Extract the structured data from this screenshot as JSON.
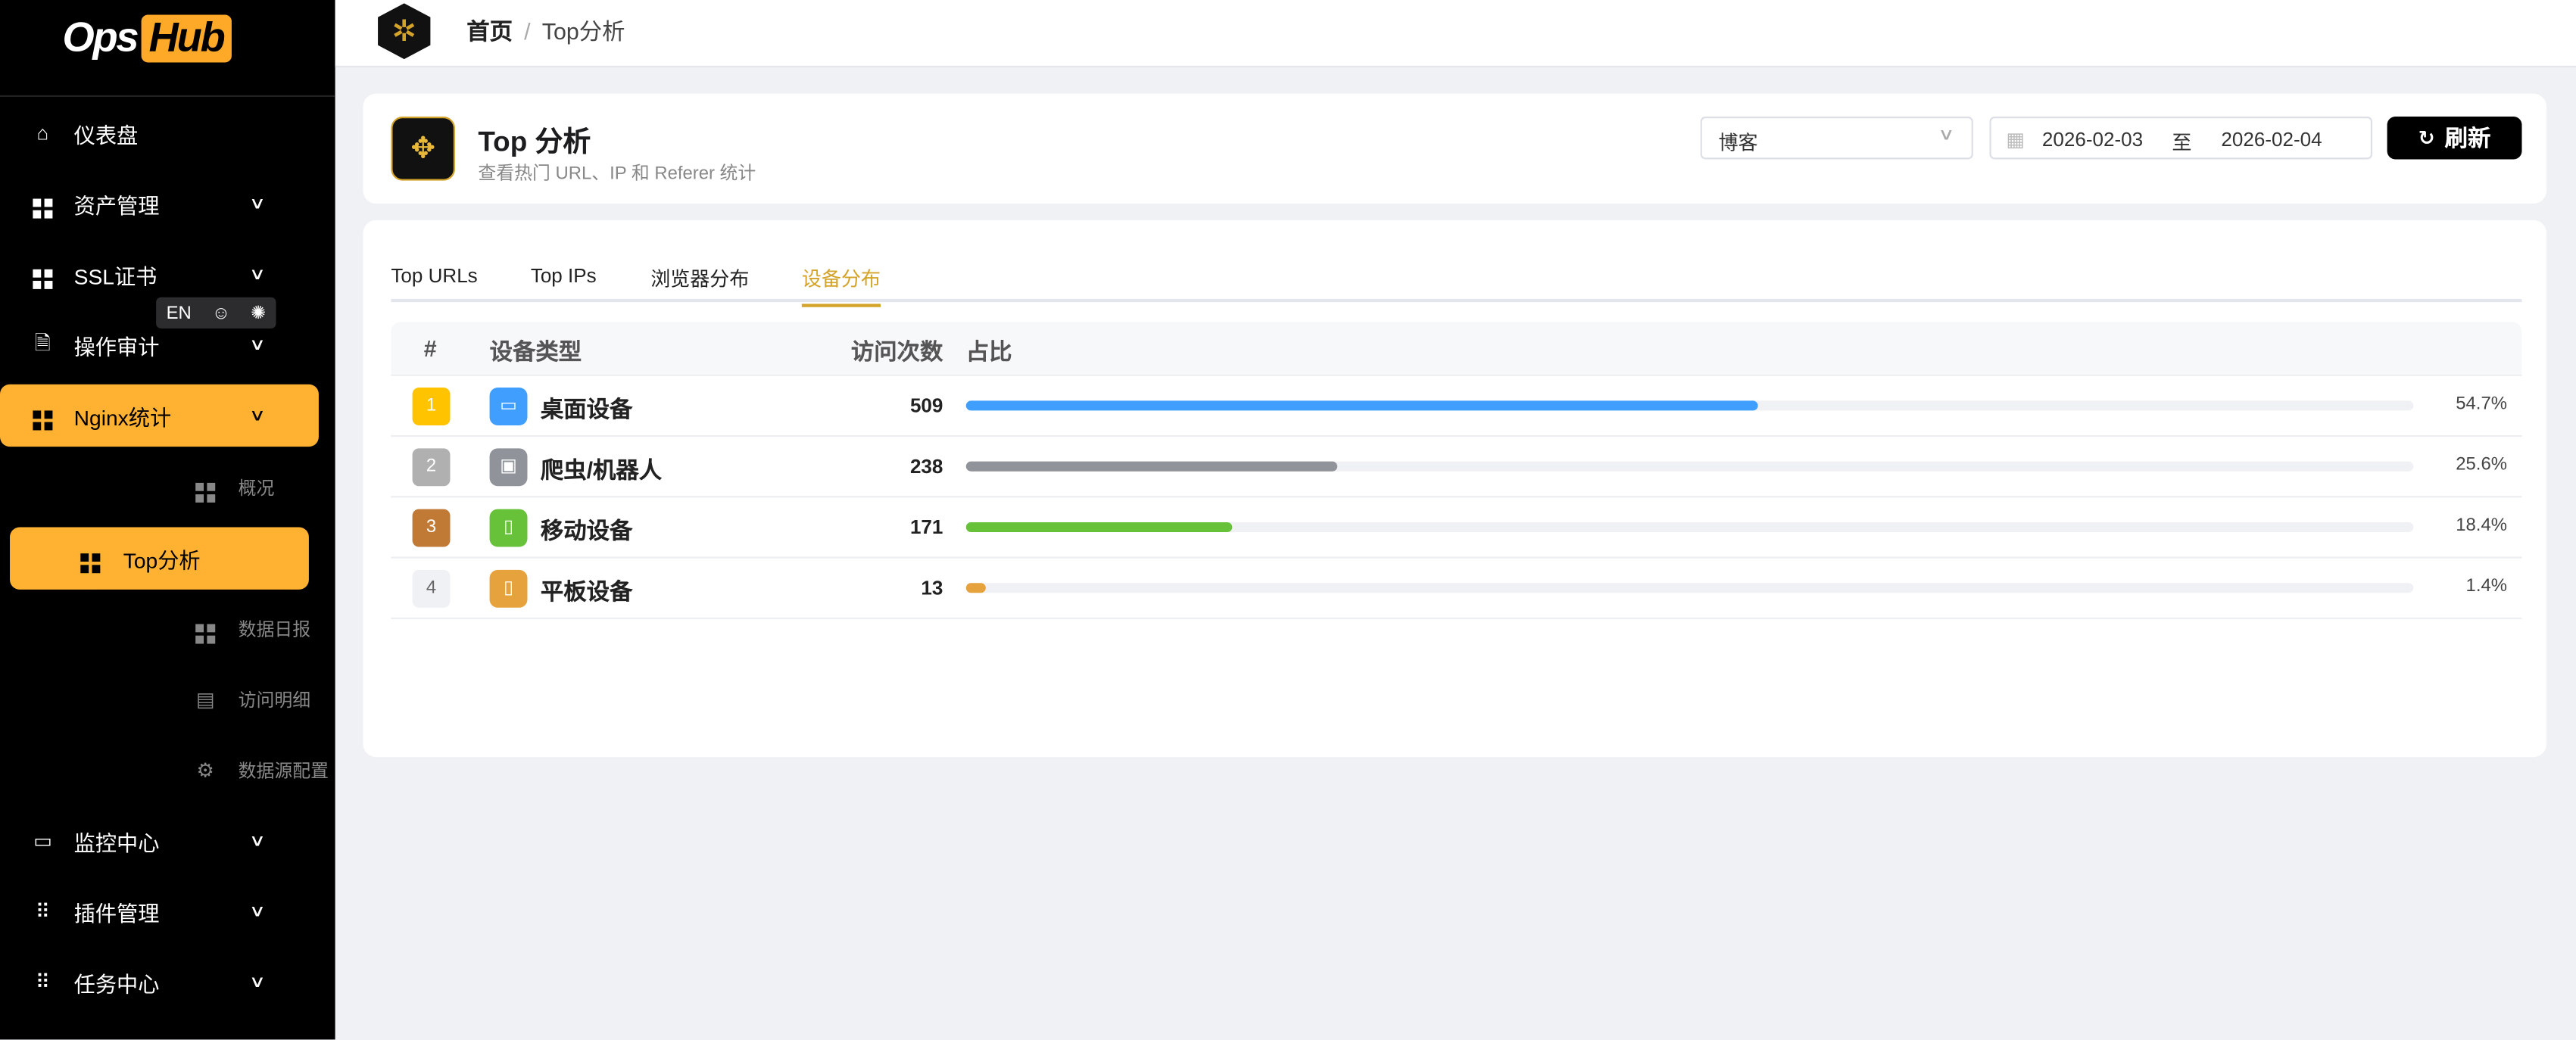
{
  "sidebar": {
    "logo": {
      "ops": "Ops",
      "hub": "Hub"
    },
    "items": [
      {
        "label": "仪表盘",
        "icon": "home-icon"
      },
      {
        "label": "资产管理",
        "icon": "grid-icon"
      },
      {
        "label": "SSL证书",
        "icon": "grid-icon"
      },
      {
        "label": "操作审计",
        "icon": "document-icon"
      },
      {
        "label": "Nginx统计",
        "icon": "grid-icon"
      },
      {
        "label": "概况",
        "icon": "grid-icon"
      },
      {
        "label": "Top分析",
        "icon": "grid-icon"
      },
      {
        "label": "数据日报",
        "icon": "grid-icon"
      },
      {
        "label": "访问明细",
        "icon": "clipboard-icon"
      },
      {
        "label": "数据源配置",
        "icon": "gear-icon"
      },
      {
        "label": "监控中心",
        "icon": "monitor-icon"
      },
      {
        "label": "插件管理",
        "icon": "apps-icon"
      },
      {
        "label": "任务中心",
        "icon": "apps-icon"
      }
    ],
    "lang": "EN"
  },
  "header": {
    "breadcrumb": [
      "首页",
      "Top分析"
    ]
  },
  "page": {
    "title": "Top 分析",
    "subtitle": "查看热门 URL、IP 和 Referer 统计",
    "site_select": "博客",
    "date_start": "2026-02-03",
    "date_sep": "至",
    "date_end": "2026-02-04",
    "refresh": "刷新"
  },
  "tabs": [
    {
      "label": "Top URLs"
    },
    {
      "label": "Top IPs"
    },
    {
      "label": "浏览器分布"
    },
    {
      "label": "设备分布",
      "active": true
    }
  ],
  "table": {
    "columns": [
      "#",
      "设备类型",
      "访问次数",
      "占比"
    ],
    "rows": [
      {
        "rank": "1",
        "name": "桌面设备",
        "count": "509",
        "percent": "54.7%",
        "pct": 54.7,
        "color": "#409eff",
        "rank_color": "#ffc300"
      },
      {
        "rank": "2",
        "name": "爬虫/机器人",
        "count": "238",
        "percent": "25.6%",
        "pct": 25.6,
        "color": "#909399",
        "rank_color": "#b0b0b0"
      },
      {
        "rank": "3",
        "name": "移动设备",
        "count": "171",
        "percent": "18.4%",
        "pct": 18.4,
        "color": "#67c23a",
        "rank_color": "#c07a35"
      },
      {
        "rank": "4",
        "name": "平板设备",
        "count": "13",
        "percent": "1.4%",
        "pct": 1.4,
        "color": "#e6a23c",
        "rank_color": "#f0f1f5"
      }
    ]
  },
  "colors": {
    "accent": "#ffb131",
    "tab_active": "#d4a32a"
  }
}
